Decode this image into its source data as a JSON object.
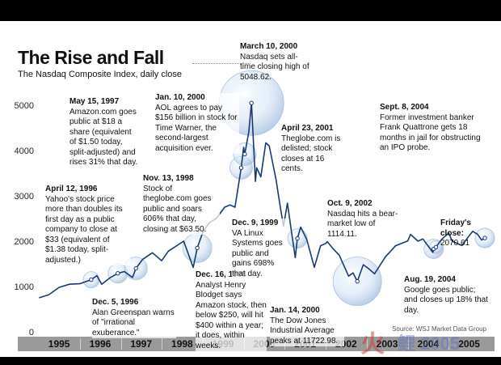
{
  "title": "The Rise and Fall",
  "subtitle": "The Nasdaq Composite Index, daily close",
  "source": "Source: WSJ Market Data Group",
  "colors": {
    "line": "#163a75",
    "axis_bar": "#9a9a9a",
    "bubble": "#bcd3ee"
  },
  "chart_data": {
    "type": "line",
    "title": "The Rise and Fall",
    "subtitle": "The Nasdaq Composite Index, daily close",
    "xlabel": "",
    "ylabel": "",
    "x_range": [
      "1995-01-01",
      "2005-12-31"
    ],
    "ylim": [
      0,
      5000
    ],
    "y_ticks": [
      0,
      1000,
      2000,
      3000,
      4000,
      5000
    ],
    "grid": false,
    "x_tick_labels": [
      "1995",
      "1996",
      "1997",
      "1998",
      "1999",
      "2000",
      "2001",
      "2002",
      "2003",
      "2004",
      "2005"
    ],
    "series": [
      {
        "name": "",
        "x": [
          "1995-01-03",
          "1995-04-01",
          "1995-07-01",
          "1995-10-01",
          "1996-01-01",
          "1996-04-12",
          "1996-06-01",
          "1996-07-15",
          "1996-10-01",
          "1996-12-05",
          "1997-02-01",
          "1997-04-15",
          "1997-05-15",
          "1997-07-15",
          "1997-10-09",
          "1997-12-31",
          "1998-03-01",
          "1998-07-15",
          "1998-10-08",
          "1998-11-13",
          "1998-12-31",
          "1999-03-01",
          "1999-05-01",
          "1999-07-15",
          "1999-09-01",
          "1999-10-15",
          "1999-12-09",
          "1999-12-31",
          "2000-01-10",
          "2000-02-15",
          "2000-03-10",
          "2000-04-14",
          "2000-04-25",
          "2000-06-01",
          "2000-07-15",
          "2000-08-15",
          "2000-09-01",
          "2000-10-15",
          "2000-11-15",
          "2000-12-20",
          "2001-01-24",
          "2001-03-01",
          "2001-04-04",
          "2001-04-23",
          "2001-05-22",
          "2001-07-15",
          "2001-09-21",
          "2001-11-15",
          "2001-12-31",
          "2002-01-15",
          "2002-03-01",
          "2002-05-01",
          "2002-07-23",
          "2002-09-01",
          "2002-10-09",
          "2002-12-01",
          "2003-01-15",
          "2003-03-11",
          "2003-06-15",
          "2003-09-15",
          "2003-12-31",
          "2004-01-26",
          "2004-04-01",
          "2004-05-15",
          "2004-08-12",
          "2004-08-19",
          "2004-09-08",
          "2004-11-01",
          "2004-12-31",
          "2005-02-01",
          "2005-04-28",
          "2005-06-15",
          "2005-08-02",
          "2005-09-15",
          "2005-10-20",
          "2005-11-18"
        ],
        "y": [
          750,
          820,
          980,
          1050,
          1060,
          1150,
          1240,
          1050,
          1200,
          1290,
          1330,
          1200,
          1400,
          1600,
          1745,
          1570,
          1780,
          2000,
          1420,
          1850,
          2190,
          2410,
          2500,
          2750,
          2800,
          2750,
          3620,
          4070,
          3920,
          4410,
          5048,
          3320,
          3620,
          3420,
          4170,
          4100,
          3900,
          3350,
          2850,
          2330,
          2840,
          2210,
          1638,
          2060,
          2310,
          2040,
          1423,
          1900,
          1950,
          1990,
          1850,
          1690,
          1229,
          1300,
          1114,
          1480,
          1400,
          1280,
          1650,
          1900,
          2003,
          2150,
          2000,
          2050,
          1752,
          1830,
          1870,
          2050,
          2175,
          2000,
          1904,
          2070,
          2218,
          2150,
          2025,
          2070
        ]
      }
    ],
    "highlights": [
      {
        "date": "1996-04-12",
        "value": 1150
      },
      {
        "date": "1996-12-05",
        "value": 1290
      },
      {
        "date": "1997-05-15",
        "value": 1400
      },
      {
        "date": "1998-11-13",
        "value": 1850
      },
      {
        "date": "1999-12-09",
        "value": 3620
      },
      {
        "date": "2000-01-10",
        "value": 3920
      },
      {
        "date": "2000-03-10",
        "value": 5048
      },
      {
        "date": "2001-04-23",
        "value": 2060
      },
      {
        "date": "2002-10-09",
        "value": 1114
      },
      {
        "date": "2004-08-19",
        "value": 1830
      },
      {
        "date": "2004-09-08",
        "value": 1870
      },
      {
        "date": "2005-11-18",
        "value": 2070
      }
    ]
  },
  "annotations": [
    {
      "id": "apr-1996",
      "date": "April 12, 1996",
      "text": "Yahoo's stock price more than doubles its first day as a public company to close at $33 (equivalent of $1.38 today, split-adjusted.)"
    },
    {
      "id": "may-1997",
      "date": "May 15, 1997",
      "text": "Amazon.com goes public at $18 a share (equivalent of $1.50 today, split-adjusted) and rises 31% that day."
    },
    {
      "id": "dec-1996",
      "date": "Dec. 5, 1996",
      "text": "Alan Greenspan warns of \"irrational exuberance.\""
    },
    {
      "id": "nov-1998",
      "date": "Nov. 13, 1998",
      "text": "Stock of theglobe.com goes public and soars 606% that day, closing at $63.50."
    },
    {
      "id": "dec-1998",
      "date": "Dec. 16, 1998",
      "text": "Analyst Henry Blodget says Amazon stock, then below $250, will hit $400 within a year; it does, within weeks."
    },
    {
      "id": "jan-2000",
      "date": "Jan. 10, 2000",
      "text": "AOL agrees to pay $156 billion in stock for Time Warner, the second-largest acquisition ever."
    },
    {
      "id": "dec-1999",
      "date": "Dec. 9, 1999",
      "text": "VA Linux Systems goes public and gains 698% that day."
    },
    {
      "id": "mar-2000",
      "date": "March 10, 2000",
      "text": "Nasdaq sets all-time closing high of 5048.62."
    },
    {
      "id": "jan-2000b",
      "date": "Jan. 14, 2000",
      "text": "The Dow Jones Industrial Average peaks at 11722.98."
    },
    {
      "id": "apr-2001",
      "date": "April 23, 2001",
      "text": "Theglobe.com is delisted; stock closes at 16 cents."
    },
    {
      "id": "oct-2002",
      "date": "Oct. 9, 2002",
      "text": "Nasdaq hits a bear-market low of 1114.11."
    },
    {
      "id": "sep-2004",
      "date": "Sept. 8, 2004",
      "text": "Former investment banker Frank Quattrone gets 18 months in jail for obstructing an IPO probe."
    },
    {
      "id": "aug-2004",
      "date": "Aug. 19, 2004",
      "text": "Google goes public; and closes up 18% that day."
    },
    {
      "id": "friday",
      "date": "Friday's close:",
      "text": "2070.61"
    }
  ],
  "watermark": {
    "text1": "火",
    "text2": "鲤 2005"
  }
}
